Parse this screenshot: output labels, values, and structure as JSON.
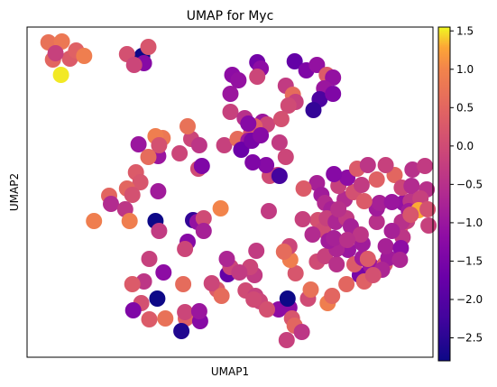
{
  "chart_data": {
    "type": "scatter",
    "title": "UMAP for Myc",
    "xlabel": "UMAP1",
    "ylabel": "UMAP2",
    "xlim": [
      0,
      455
    ],
    "ylim": [
      0,
      366
    ],
    "colormap": "plasma",
    "colorbar": {
      "range": [
        -2.8,
        1.55
      ],
      "ticks": [
        "1.5",
        "1.0",
        "0.5",
        "0.0",
        "−0.5",
        "−1.0",
        "−1.5",
        "−2.0",
        "−2.5"
      ],
      "tick_values": [
        1.5,
        1.0,
        0.5,
        0.0,
        -0.5,
        -1.0,
        -1.5,
        -2.0,
        -2.5
      ]
    },
    "grid": false,
    "points": [
      {
        "x": 24,
        "y": 349,
        "c": 0.7
      },
      {
        "x": 39,
        "y": 350,
        "c": 0.8
      },
      {
        "x": 29,
        "y": 330,
        "c": 0.5
      },
      {
        "x": 48,
        "y": 331,
        "c": 0.3
      },
      {
        "x": 55,
        "y": 340,
        "c": 0.4
      },
      {
        "x": 64,
        "y": 334,
        "c": 0.9
      },
      {
        "x": 38,
        "y": 313,
        "c": 1.5
      },
      {
        "x": 32,
        "y": 337,
        "c": -0.2
      },
      {
        "x": 129,
        "y": 334,
        "c": -2.8
      },
      {
        "x": 136,
        "y": 344,
        "c": 0.2
      },
      {
        "x": 112,
        "y": 336,
        "c": 0.1
      },
      {
        "x": 131,
        "y": 326,
        "c": -1.3
      },
      {
        "x": 120,
        "y": 324,
        "c": -0.1
      },
      {
        "x": 230,
        "y": 313,
        "c": -1.2
      },
      {
        "x": 237,
        "y": 307,
        "c": -1.1
      },
      {
        "x": 258,
        "y": 327,
        "c": -1.6
      },
      {
        "x": 262,
        "y": 320,
        "c": -1.2
      },
      {
        "x": 300,
        "y": 328,
        "c": -1.8
      },
      {
        "x": 313,
        "y": 318,
        "c": -1.4
      },
      {
        "x": 325,
        "y": 324,
        "c": -1.1
      },
      {
        "x": 336,
        "y": 313,
        "c": 0.3
      },
      {
        "x": 343,
        "y": 310,
        "c": -1.1
      },
      {
        "x": 290,
        "y": 301,
        "c": -0.3
      },
      {
        "x": 298,
        "y": 291,
        "c": 0.6
      },
      {
        "x": 333,
        "y": 298,
        "c": -1.0
      },
      {
        "x": 328,
        "y": 286,
        "c": -2.1
      },
      {
        "x": 301,
        "y": 283,
        "c": -0.2
      },
      {
        "x": 343,
        "y": 292,
        "c": -1.4
      },
      {
        "x": 321,
        "y": 274,
        "c": -2.4
      },
      {
        "x": 228,
        "y": 292,
        "c": -1.0
      },
      {
        "x": 258,
        "y": 311,
        "c": -0.1
      },
      {
        "x": 293,
        "y": 279,
        "c": 0.0
      },
      {
        "x": 228,
        "y": 272,
        "c": -0.2
      },
      {
        "x": 244,
        "y": 265,
        "c": -0.5
      },
      {
        "x": 264,
        "y": 261,
        "c": -1.0
      },
      {
        "x": 269,
        "y": 258,
        "c": -0.1
      },
      {
        "x": 255,
        "y": 256,
        "c": 0.4
      },
      {
        "x": 285,
        "y": 264,
        "c": 0.1
      },
      {
        "x": 283,
        "y": 238,
        "c": -0.3
      },
      {
        "x": 290,
        "y": 222,
        "c": -0.1
      },
      {
        "x": 251,
        "y": 248,
        "c": 0.2
      },
      {
        "x": 221,
        "y": 235,
        "c": -0.2
      },
      {
        "x": 236,
        "y": 242,
        "c": 0.6
      },
      {
        "x": 248,
        "y": 240,
        "c": -1.0
      },
      {
        "x": 184,
        "y": 242,
        "c": -0.1
      },
      {
        "x": 193,
        "y": 235,
        "c": -0.4
      },
      {
        "x": 180,
        "y": 256,
        "c": 0.7
      },
      {
        "x": 152,
        "y": 243,
        "c": 0.8
      },
      {
        "x": 144,
        "y": 245,
        "c": 0.9
      },
      {
        "x": 125,
        "y": 236,
        "c": -1.0
      },
      {
        "x": 147,
        "y": 223,
        "c": -1.0
      },
      {
        "x": 148,
        "y": 235,
        "c": 0.1
      },
      {
        "x": 136,
        "y": 222,
        "c": 0.6
      },
      {
        "x": 171,
        "y": 226,
        "c": -0.1
      },
      {
        "x": 192,
        "y": 209,
        "c": 0.0
      },
      {
        "x": 122,
        "y": 205,
        "c": 0.3
      },
      {
        "x": 127,
        "y": 194,
        "c": 0.2
      },
      {
        "x": 112,
        "y": 187,
        "c": 0.5
      },
      {
        "x": 118,
        "y": 180,
        "c": 0.1
      },
      {
        "x": 147,
        "y": 184,
        "c": -0.9
      },
      {
        "x": 92,
        "y": 179,
        "c": 0.5
      },
      {
        "x": 94,
        "y": 170,
        "c": -0.6
      },
      {
        "x": 110,
        "y": 164,
        "c": -0.4
      },
      {
        "x": 144,
        "y": 151,
        "c": -2.8
      },
      {
        "x": 115,
        "y": 151,
        "c": 0.9
      },
      {
        "x": 75,
        "y": 151,
        "c": 0.9
      },
      {
        "x": 186,
        "y": 152,
        "c": -2.4
      },
      {
        "x": 191,
        "y": 150,
        "c": -1.1
      },
      {
        "x": 198,
        "y": 154,
        "c": 0.0
      },
      {
        "x": 217,
        "y": 165,
        "c": 1.0
      },
      {
        "x": 148,
        "y": 140,
        "c": -0.3
      },
      {
        "x": 198,
        "y": 140,
        "c": -0.8
      },
      {
        "x": 180,
        "y": 128,
        "c": -1.3
      },
      {
        "x": 177,
        "y": 120,
        "c": -0.1
      },
      {
        "x": 225,
        "y": 92,
        "c": -1.8
      },
      {
        "x": 271,
        "y": 162,
        "c": -0.3
      },
      {
        "x": 137,
        "y": 109,
        "c": -0.2
      },
      {
        "x": 153,
        "y": 94,
        "c": -1.2
      },
      {
        "x": 131,
        "y": 84,
        "c": -0.4
      },
      {
        "x": 146,
        "y": 65,
        "c": -2.8
      },
      {
        "x": 118,
        "y": 81,
        "c": 0.3
      },
      {
        "x": 128,
        "y": 60,
        "c": 0.1
      },
      {
        "x": 137,
        "y": 42,
        "c": 0.3
      },
      {
        "x": 155,
        "y": 43,
        "c": 0.7
      },
      {
        "x": 175,
        "y": 81,
        "c": 0.6
      },
      {
        "x": 178,
        "y": 43,
        "c": 0.4
      },
      {
        "x": 194,
        "y": 40,
        "c": -1.3
      },
      {
        "x": 177,
        "y": 50,
        "c": -0.1
      },
      {
        "x": 193,
        "y": 51,
        "c": -1.0
      },
      {
        "x": 173,
        "y": 29,
        "c": -2.6
      },
      {
        "x": 119,
        "y": 52,
        "c": -1.4
      },
      {
        "x": 213,
        "y": 75,
        "c": 0.3
      },
      {
        "x": 207,
        "y": 82,
        "c": -0.1
      },
      {
        "x": 218,
        "y": 68,
        "c": 0.6
      },
      {
        "x": 245,
        "y": 74,
        "c": 0.0
      },
      {
        "x": 256,
        "y": 68,
        "c": -0.2
      },
      {
        "x": 261,
        "y": 62,
        "c": -0.1
      },
      {
        "x": 282,
        "y": 53,
        "c": -1.2
      },
      {
        "x": 294,
        "y": 55,
        "c": -1.2
      },
      {
        "x": 297,
        "y": 43,
        "c": 0.2
      },
      {
        "x": 292,
        "y": 65,
        "c": -2.8
      },
      {
        "x": 300,
        "y": 35,
        "c": 0.5
      },
      {
        "x": 308,
        "y": 28,
        "c": -0.4
      },
      {
        "x": 291,
        "y": 19,
        "c": -0.2
      },
      {
        "x": 315,
        "y": 65,
        "c": 0.0
      },
      {
        "x": 318,
        "y": 75,
        "c": 0.7
      },
      {
        "x": 337,
        "y": 60,
        "c": 0.9
      },
      {
        "x": 342,
        "y": 68,
        "c": 0.5
      },
      {
        "x": 301,
        "y": 93,
        "c": 0.2
      },
      {
        "x": 295,
        "y": 108,
        "c": 0.9
      },
      {
        "x": 325,
        "y": 106,
        "c": 0.0
      },
      {
        "x": 334,
        "y": 112,
        "c": -0.2
      },
      {
        "x": 347,
        "y": 103,
        "c": -0.5
      },
      {
        "x": 360,
        "y": 119,
        "c": -1.0
      },
      {
        "x": 373,
        "y": 91,
        "c": -1.5
      },
      {
        "x": 358,
        "y": 81,
        "c": 0.5
      },
      {
        "x": 367,
        "y": 103,
        "c": 0.3
      },
      {
        "x": 376,
        "y": 110,
        "c": -0.9
      },
      {
        "x": 385,
        "y": 102,
        "c": -1.0
      },
      {
        "x": 401,
        "y": 103,
        "c": 0.3
      },
      {
        "x": 405,
        "y": 110,
        "c": -0.9
      },
      {
        "x": 402,
        "y": 123,
        "c": -0.8
      },
      {
        "x": 376,
        "y": 126,
        "c": -0.9
      },
      {
        "x": 392,
        "y": 150,
        "c": -0.5
      },
      {
        "x": 392,
        "y": 165,
        "c": -0.9
      },
      {
        "x": 395,
        "y": 171,
        "c": -0.8
      },
      {
        "x": 418,
        "y": 143,
        "c": 0.2
      },
      {
        "x": 426,
        "y": 151,
        "c": -0.2
      },
      {
        "x": 421,
        "y": 133,
        "c": -0.4
      },
      {
        "x": 422,
        "y": 171,
        "c": -1.1
      },
      {
        "x": 430,
        "y": 173,
        "c": -0.4
      },
      {
        "x": 428,
        "y": 162,
        "c": -0.9
      },
      {
        "x": 356,
        "y": 175,
        "c": -0.6
      },
      {
        "x": 349,
        "y": 190,
        "c": -0.2
      },
      {
        "x": 366,
        "y": 183,
        "c": 0.1
      },
      {
        "x": 359,
        "y": 199,
        "c": -1.2
      },
      {
        "x": 375,
        "y": 191,
        "c": -0.3
      },
      {
        "x": 370,
        "y": 209,
        "c": 0.3
      },
      {
        "x": 392,
        "y": 197,
        "c": 0.4
      },
      {
        "x": 412,
        "y": 202,
        "c": 0.5
      },
      {
        "x": 325,
        "y": 193,
        "c": -0.8
      },
      {
        "x": 330,
        "y": 180,
        "c": -0.9
      },
      {
        "x": 334,
        "y": 171,
        "c": -0.6
      },
      {
        "x": 341,
        "y": 164,
        "c": -0.8
      },
      {
        "x": 326,
        "y": 152,
        "c": 0.1
      },
      {
        "x": 332,
        "y": 141,
        "c": 0.0
      },
      {
        "x": 320,
        "y": 136,
        "c": -0.6
      },
      {
        "x": 336,
        "y": 154,
        "c": -0.2
      },
      {
        "x": 346,
        "y": 150,
        "c": -0.7
      },
      {
        "x": 358,
        "y": 154,
        "c": -0.3
      },
      {
        "x": 363,
        "y": 145,
        "c": -0.8
      },
      {
        "x": 309,
        "y": 153,
        "c": -0.2
      },
      {
        "x": 294,
        "y": 123,
        "c": -0.1
      },
      {
        "x": 288,
        "y": 117,
        "c": 0.6
      },
      {
        "x": 255,
        "y": 91,
        "c": -0.3
      },
      {
        "x": 257,
        "y": 118,
        "c": -0.3
      },
      {
        "x": 250,
        "y": 100,
        "c": -0.1
      },
      {
        "x": 228,
        "y": 100,
        "c": -0.1
      },
      {
        "x": 224,
        "y": 109,
        "c": -0.7
      },
      {
        "x": 238,
        "y": 94,
        "c": -0.3
      },
      {
        "x": 254,
        "y": 64,
        "c": 0.0
      },
      {
        "x": 269,
        "y": 53,
        "c": 0.1
      },
      {
        "x": 196,
        "y": 212,
        "c": -1.4
      },
      {
        "x": 272,
        "y": 201,
        "c": 0.0
      },
      {
        "x": 281,
        "y": 202,
        "c": -0.2
      },
      {
        "x": 268,
        "y": 213,
        "c": -1.3
      },
      {
        "x": 253,
        "y": 216,
        "c": -1.4
      },
      {
        "x": 240,
        "y": 230,
        "c": -1.7
      },
      {
        "x": 252,
        "y": 240,
        "c": -1.5
      },
      {
        "x": 262,
        "y": 246,
        "c": -1.3
      },
      {
        "x": 248,
        "y": 259,
        "c": -1.3
      },
      {
        "x": 283,
        "y": 201,
        "c": -2.2
      },
      {
        "x": 344,
        "y": 203,
        "c": -1.3
      },
      {
        "x": 310,
        "y": 187,
        "c": 0.3
      },
      {
        "x": 382,
        "y": 213,
        "c": -0.4
      },
      {
        "x": 402,
        "y": 213,
        "c": -0.2
      },
      {
        "x": 432,
        "y": 208,
        "c": -0.5
      },
      {
        "x": 446,
        "y": 212,
        "c": -0.3
      },
      {
        "x": 409,
        "y": 172,
        "c": -1.0
      },
      {
        "x": 420,
        "y": 188,
        "c": -0.1
      },
      {
        "x": 431,
        "y": 190,
        "c": -0.6
      },
      {
        "x": 448,
        "y": 186,
        "c": -0.5
      },
      {
        "x": 441,
        "y": 176,
        "c": -0.2
      },
      {
        "x": 439,
        "y": 163,
        "c": 1.3
      },
      {
        "x": 449,
        "y": 164,
        "c": 0.1
      },
      {
        "x": 420,
        "y": 150,
        "c": -0.5
      },
      {
        "x": 409,
        "y": 140,
        "c": -0.8
      },
      {
        "x": 419,
        "y": 121,
        "c": -1.2
      },
      {
        "x": 418,
        "y": 108,
        "c": -0.7
      },
      {
        "x": 398,
        "y": 97,
        "c": -0.7
      },
      {
        "x": 378,
        "y": 84,
        "c": 0.4
      },
      {
        "x": 388,
        "y": 91,
        "c": 0.1
      },
      {
        "x": 347,
        "y": 120,
        "c": -0.7
      },
      {
        "x": 338,
        "y": 129,
        "c": -0.9
      },
      {
        "x": 344,
        "y": 132,
        "c": -0.8
      },
      {
        "x": 382,
        "y": 109,
        "c": 0.3
      },
      {
        "x": 430,
        "y": 158,
        "c": 0.2
      },
      {
        "x": 450,
        "y": 146,
        "c": -0.2
      },
      {
        "x": 374,
        "y": 136,
        "c": -0.4
      },
      {
        "x": 359,
        "y": 130,
        "c": -0.5
      },
      {
        "x": 378,
        "y": 173,
        "c": 0.3
      },
      {
        "x": 349,
        "y": 164,
        "c": -0.5
      }
    ]
  }
}
